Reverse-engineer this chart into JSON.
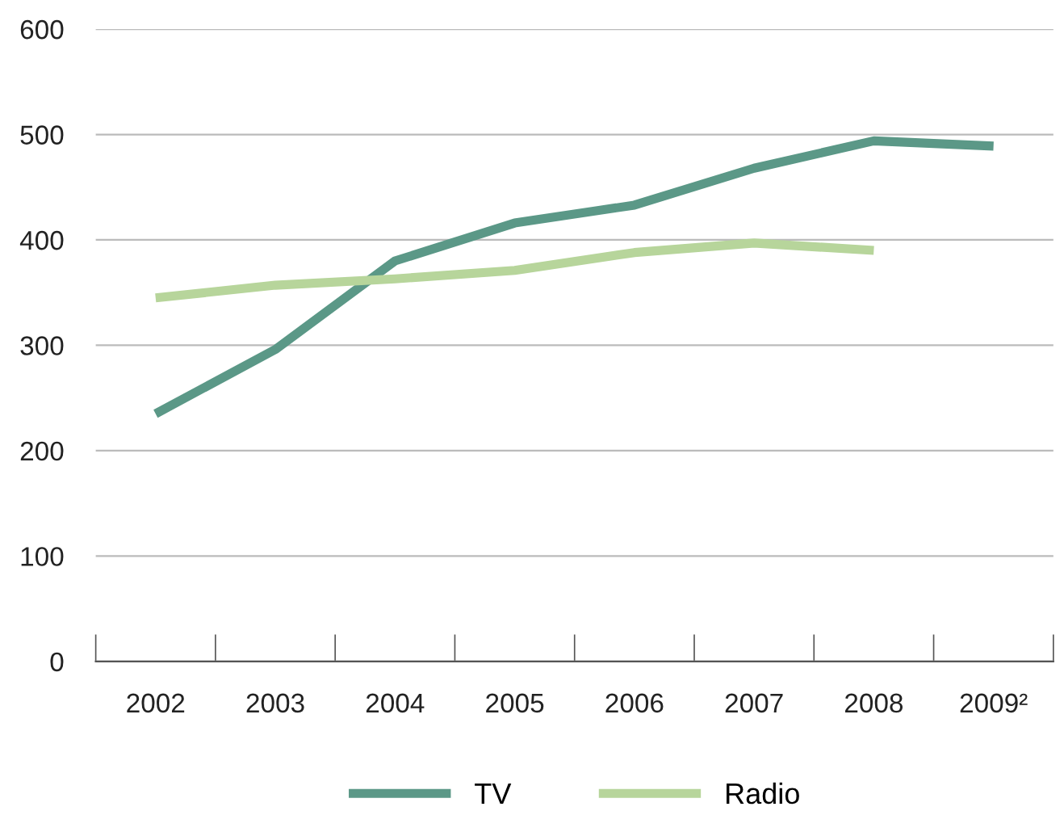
{
  "chart_data": {
    "type": "line",
    "categories": [
      "2002",
      "2003",
      "2004",
      "2005",
      "2006",
      "2007",
      "2008",
      "2009²"
    ],
    "series": [
      {
        "name": "TV",
        "color": "#5b9887",
        "values": [
          235,
          296,
          380,
          416,
          433,
          468,
          494,
          489
        ]
      },
      {
        "name": "Radio",
        "color": "#b7d59b",
        "values": [
          345,
          357,
          363,
          371,
          388,
          397,
          390,
          null
        ]
      }
    ],
    "ylim": [
      0,
      600
    ],
    "yticks": [
      0,
      100,
      200,
      300,
      400,
      500,
      600
    ],
    "grid": "y",
    "legend": "bottom",
    "marker": "none",
    "line_style": "solid"
  }
}
